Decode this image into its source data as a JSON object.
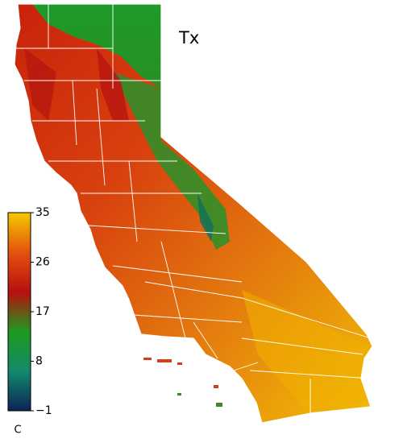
{
  "map": {
    "title": "Tx",
    "colorbar": {
      "label": "C",
      "range": [
        -1,
        35
      ],
      "ticks": [
        35,
        26,
        17,
        8,
        {
          "value": -1,
          "label": "−1"
        }
      ],
      "colors": [
        "#0a2458",
        "#138a6a",
        "#1f9a1f",
        "#b80f0f",
        "#e4520f",
        "#f6c800"
      ]
    }
  }
}
